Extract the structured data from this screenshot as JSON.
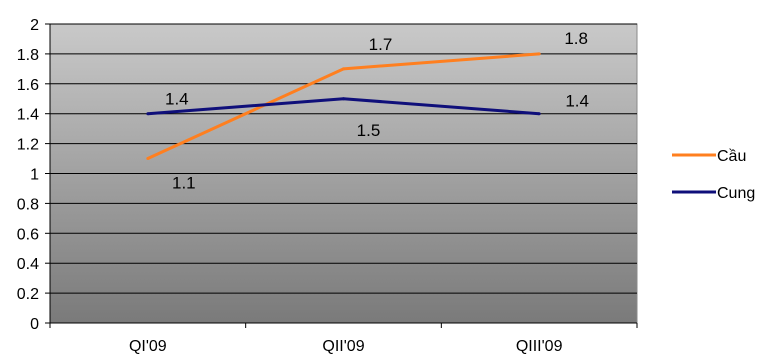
{
  "chart_data": {
    "type": "line",
    "categories": [
      "QI'09",
      "QII'09",
      "QIII'09"
    ],
    "series": [
      {
        "name": "Cầu",
        "values": [
          1.1,
          1.7,
          1.8
        ],
        "color": "#ff7f1f"
      },
      {
        "name": "Cung",
        "values": [
          1.4,
          1.5,
          1.4
        ],
        "color": "#0f0f7a"
      }
    ],
    "ylim": [
      0,
      2
    ],
    "yticks": [
      "0",
      "0.2",
      "0.4",
      "0.6",
      "0.8",
      "1",
      "1.2",
      "1.4",
      "1.6",
      "1.8",
      "2"
    ],
    "data_labels": [
      [
        "1.1",
        "1.7",
        "1.8"
      ],
      [
        "1.4",
        "1.5",
        "1.4"
      ]
    ],
    "grid": true,
    "legend_position": "right",
    "plot_background": "gradient-gray"
  }
}
